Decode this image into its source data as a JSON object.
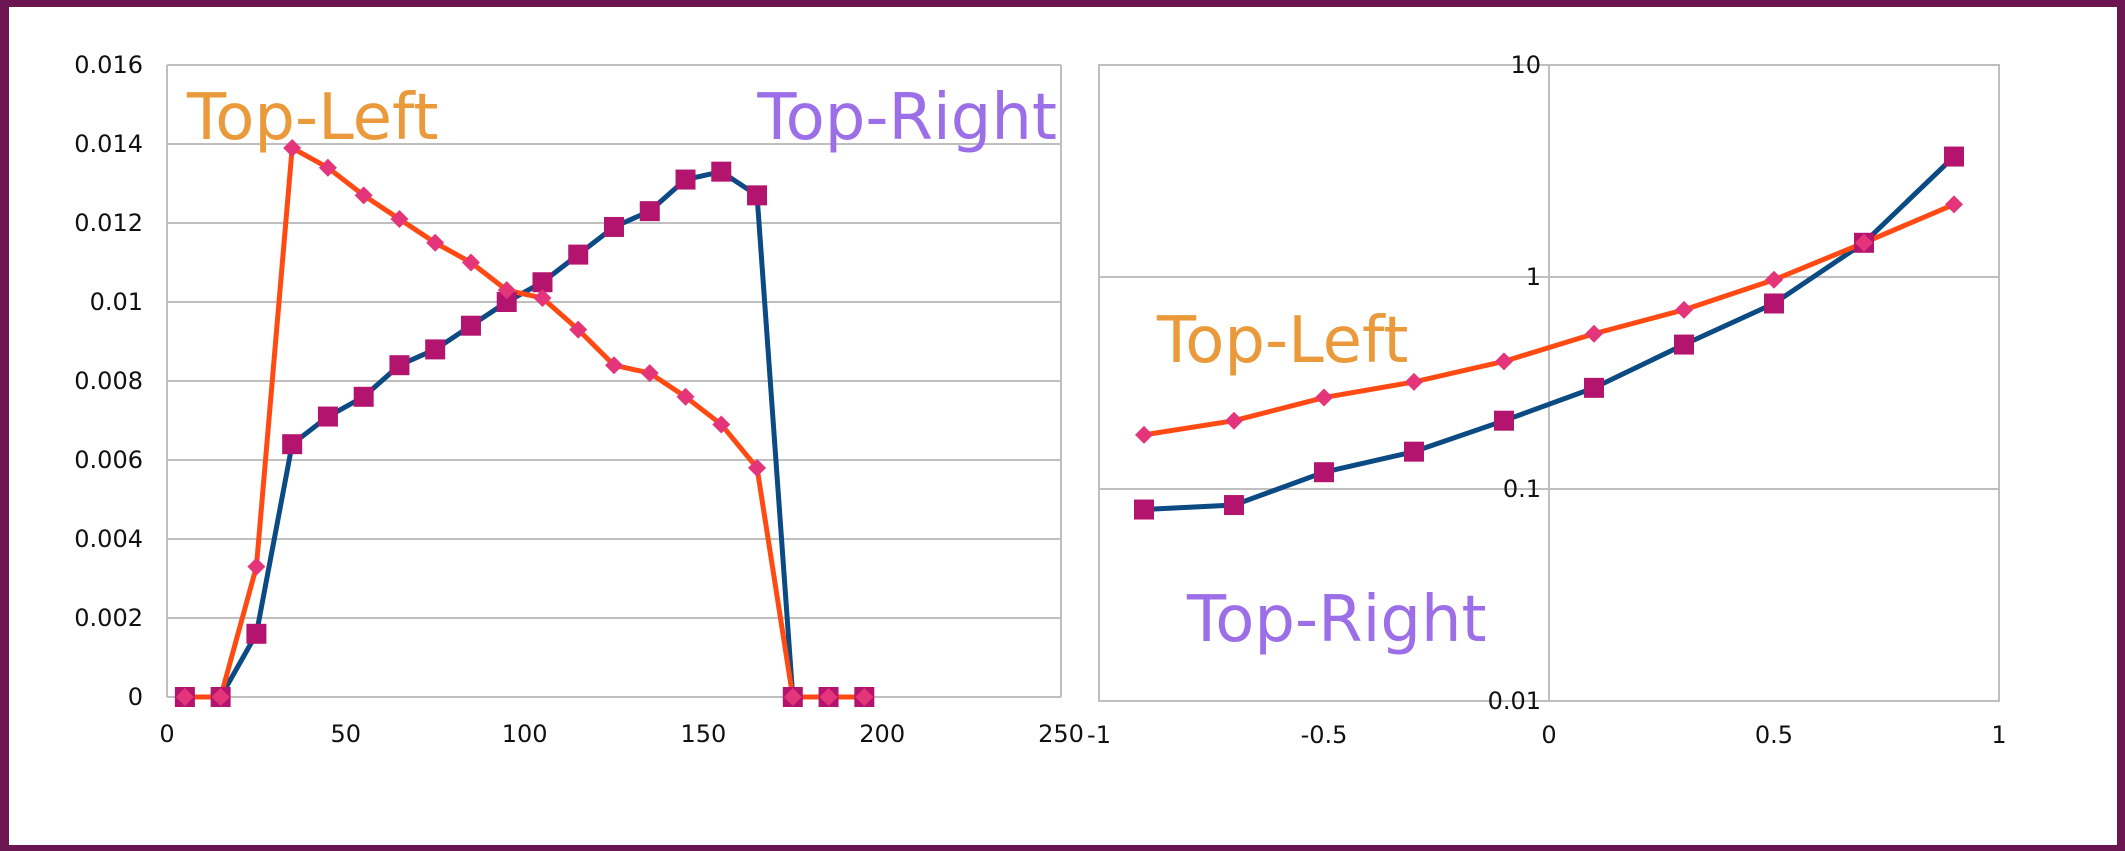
{
  "colors": {
    "frame": "#6b1650",
    "top_left_line": "#ff4a14",
    "top_right_line": "#0b4a82",
    "diamond_marker": "#e5357a",
    "square_marker": "#b3156e",
    "label_top_left": "#ea9a3a",
    "label_top_right": "#9c6ee8",
    "grid": "#bfbfbf"
  },
  "chart_data": [
    {
      "type": "line",
      "xlim": [
        0,
        250
      ],
      "ylim": [
        0,
        0.016
      ],
      "x_ticks": [
        0,
        50,
        100,
        150,
        200,
        250
      ],
      "y_ticks": [
        0,
        0.002,
        0.004,
        0.006,
        0.008,
        0.01,
        0.012,
        0.014,
        0.016
      ],
      "x_tick_labels": [
        "0",
        "50",
        "100",
        "150",
        "200",
        "250"
      ],
      "y_tick_labels": [
        "0",
        "0.002",
        "0.004",
        "0.006",
        "0.008",
        "0.01",
        "0.012",
        "0.014",
        "0.016"
      ],
      "grid": "horizontal",
      "annotations": [
        "Top-Left",
        "Top-Right"
      ],
      "x": [
        5,
        15,
        25,
        35,
        45,
        55,
        65,
        75,
        85,
        95,
        105,
        115,
        125,
        135,
        145,
        155,
        165,
        175,
        185,
        195
      ],
      "series": [
        {
          "marker": "diamond",
          "values": [
            0,
            0,
            0.0033,
            0.0139,
            0.0134,
            0.0127,
            0.0121,
            0.0115,
            0.011,
            0.0103,
            0.0101,
            0.0093,
            0.0084,
            0.0082,
            0.0076,
            0.0069,
            0.0058,
            0,
            0,
            0
          ]
        },
        {
          "marker": "square",
          "values": [
            0,
            0,
            0.0016,
            0.0064,
            0.0071,
            0.0076,
            0.0084,
            0.0088,
            0.0094,
            0.01,
            0.0105,
            0.0112,
            0.0119,
            0.0123,
            0.0131,
            0.0133,
            0.0127,
            0,
            0,
            0
          ]
        }
      ]
    },
    {
      "type": "line",
      "xlim": [
        -1,
        1
      ],
      "ylim": [
        0.01,
        10
      ],
      "y_scale": "log",
      "x_ticks": [
        -1,
        -0.5,
        0,
        0.5,
        1
      ],
      "y_ticks": [
        0.01,
        0.1,
        1,
        10
      ],
      "x_tick_labels": [
        "-1",
        "-0.5",
        "0",
        "0.5",
        "1"
      ],
      "y_tick_labels": [
        "0.01",
        "0.1",
        "1",
        "10"
      ],
      "grid": "both",
      "annotations": [
        "Top-Left",
        "Top-Right"
      ],
      "x": [
        -0.9,
        -0.7,
        -0.5,
        -0.3,
        -0.1,
        0.1,
        0.3,
        0.5,
        0.7,
        0.9
      ],
      "series": [
        {
          "marker": "diamond",
          "values": [
            0.18,
            0.21,
            0.27,
            0.32,
            0.4,
            0.54,
            0.7,
            0.97,
            1.45,
            2.2
          ]
        },
        {
          "marker": "square",
          "values": [
            0.08,
            0.084,
            0.12,
            0.15,
            0.21,
            0.3,
            0.48,
            0.75,
            1.45,
            3.7
          ]
        }
      ]
    }
  ]
}
